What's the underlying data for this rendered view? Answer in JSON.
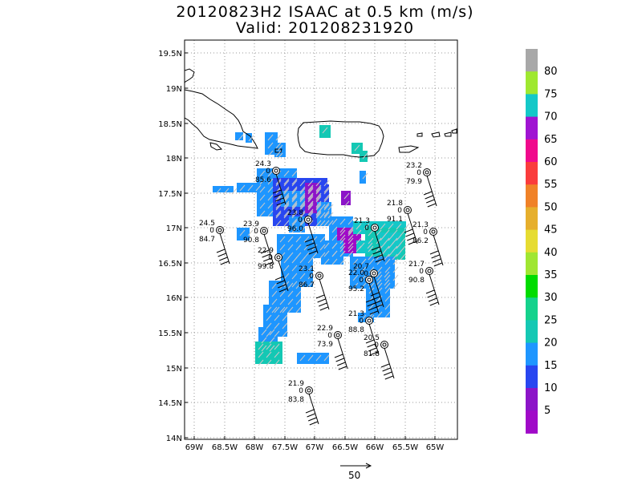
{
  "header": {
    "title": "20120823H2 ISAAC at 0.5 km (m/s)",
    "valid": "Valid: 201208231920"
  },
  "axes": {
    "lat_ticks": [
      "19.5N",
      "19N",
      "18.5N",
      "18N",
      "17.5N",
      "17N",
      "16.5N",
      "16N",
      "15.5N",
      "15N",
      "14.5N",
      "14N"
    ],
    "lon_ticks": [
      "69W",
      "68.5W",
      "68W",
      "67.5W",
      "67W",
      "66.5W",
      "66W",
      "65.5W",
      "65W"
    ]
  },
  "colorbar": {
    "labels": [
      "80",
      "75",
      "70",
      "65",
      "60",
      "55",
      "50",
      "45",
      "40",
      "35",
      "30",
      "25",
      "20",
      "15",
      "10",
      "5"
    ],
    "colors": [
      "#a8a8a8",
      "#9fe830",
      "#14c8c8",
      "#a014d2",
      "#f00a8c",
      "#fa3c3c",
      "#f08228",
      "#e6af2d",
      "#e6dc32",
      "#a0e632",
      "#00dc00",
      "#14d28c",
      "#14c8b4",
      "#1e96ff",
      "#2846f0",
      "#8c14c8",
      "#a00ac8"
    ]
  },
  "stations": [
    {
      "speed": "24.3",
      "dir": "0",
      "pres": "85.6"
    },
    {
      "speed": "23.2",
      "dir": "0",
      "pres": "79.9"
    },
    {
      "speed": "24.5",
      "dir": "0",
      "pres": "84.7"
    },
    {
      "speed": "23.9",
      "dir": "0",
      "pres": "90.8"
    },
    {
      "speed": "23.8",
      "dir": "0",
      "pres": "96.0"
    },
    {
      "speed": "21.8",
      "dir": "0",
      "pres": "91.1"
    },
    {
      "speed": "21.3",
      "dir": "0",
      "pres": ""
    },
    {
      "speed": "21.3",
      "dir": "0",
      "pres": "86.2"
    },
    {
      "speed": "22.9",
      "dir": "0",
      "pres": "99.8"
    },
    {
      "speed": "23.1",
      "dir": "0",
      "pres": "86.7"
    },
    {
      "speed": "20.7",
      "dir": "0",
      "pres": ""
    },
    {
      "speed": "22.0",
      "dir": "0",
      "pres": "95.2"
    },
    {
      "speed": "21.7",
      "dir": "0",
      "pres": "90.8"
    },
    {
      "speed": "21.3",
      "dir": "0",
      "pres": "88.8"
    },
    {
      "speed": "22.9",
      "dir": "0",
      "pres": "73.9"
    },
    {
      "speed": "20.5",
      "dir": "0",
      "pres": "81.8"
    },
    {
      "speed": "21.9",
      "dir": "0",
      "pres": "83.8"
    }
  ],
  "scale_vector": {
    "label": "50"
  }
}
